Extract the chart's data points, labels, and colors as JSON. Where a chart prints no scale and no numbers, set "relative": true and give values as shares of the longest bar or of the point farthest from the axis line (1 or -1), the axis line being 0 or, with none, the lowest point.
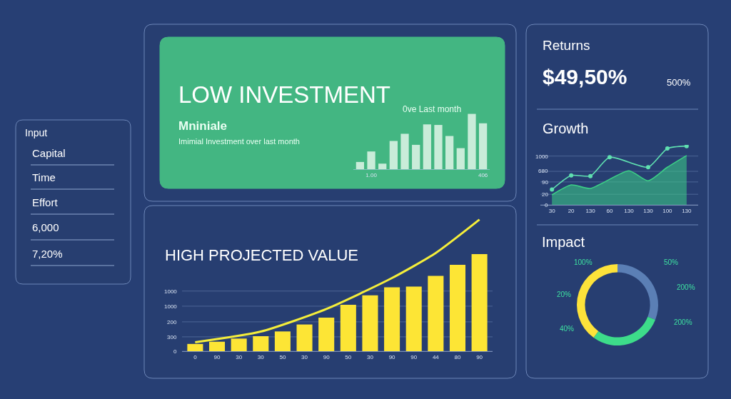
{
  "chart_data": [
    {
      "type": "other",
      "title": "Input",
      "annotations": [
        "Capital",
        "Time",
        "Effort",
        "6,000",
        "7,20%"
      ]
    },
    {
      "type": "bar",
      "title": "LOW INVESTMENT",
      "annotations": [
        "Mniniale",
        "Imimial Investment over last month",
        "0ve Last month"
      ],
      "relative": true,
      "tick_labels": "x",
      "categories": [
        null,
        "1.00",
        null,
        null,
        null,
        null,
        null,
        null,
        null,
        null,
        null,
        "406"
      ],
      "values": [
        0.13,
        0.32,
        0.1,
        0.51,
        0.64,
        0.44,
        0.81,
        0.8,
        0.6,
        0.38,
        1,
        0.83
      ],
      "color": "#c9ecd9"
    },
    {
      "type": "other",
      "title": "Returns",
      "annotations": [
        "$49,50%",
        "500%"
      ]
    },
    {
      "type": "line",
      "title": "Growth",
      "relative": true,
      "tick_labels": "x",
      "annotations": [
        "1000",
        "680",
        "90",
        "20",
        "0"
      ],
      "ref_lines": [
        {
          "axis": "y",
          "value": 0.83
        },
        {
          "axis": "y",
          "value": 0.57
        },
        {
          "axis": "y",
          "value": 0.39
        },
        {
          "axis": "y",
          "value": 0.18
        },
        {
          "axis": "y",
          "value": 0
        }
      ],
      "categories": [
        "30",
        "20",
        "130",
        "60",
        "130",
        "130",
        "100",
        "130"
      ],
      "series": [
        {
          "type": "area",
          "color": "#3ccf86",
          "values": [
            0.17,
            0.34,
            0.28,
            null,
            0.58,
            0.41,
            0.64,
            0.84
          ]
        },
        {
          "type": "line",
          "color": "#5fe0b0",
          "marker": "circle",
          "values": [
            0.26,
            0.5,
            0.49,
            0.81,
            null,
            0.64,
            0.96,
            1.0
          ]
        }
      ]
    },
    {
      "type": "bar",
      "title": "HIGH PROJECTED VALUE",
      "relative": true,
      "tick_labels": "x",
      "annotations": [
        "1000",
        "1000",
        "200",
        "300",
        "0"
      ],
      "ref_lines": [
        {
          "axis": "y",
          "value": 0.457
        },
        {
          "axis": "y",
          "value": 0.342
        },
        {
          "axis": "y",
          "value": 0.223
        },
        {
          "axis": "y",
          "value": 0.109
        },
        {
          "axis": "y",
          "value": 0
        }
      ],
      "categories": [
        "0",
        "90",
        "30",
        "30",
        "50",
        "30",
        "90",
        "50",
        "30",
        "90",
        "90",
        "44",
        "80",
        "90"
      ],
      "series": [
        {
          "color": "#fde535",
          "values": [
            0.055,
            0.072,
            0.096,
            0.114,
            0.15,
            0.203,
            0.255,
            0.352,
            0.425,
            0.486,
            0.491,
            0.572,
            0.656,
            0.738
          ]
        },
        {
          "type": "line",
          "color": "#f5ee3a",
          "values": [
            0.068,
            null,
            null,
            0.149,
            null,
            null,
            0.321,
            null,
            null,
            0.556,
            null,
            0.746,
            null,
            1.0
          ]
        }
      ]
    },
    {
      "type": "donut",
      "title": "Impact",
      "categories": [
        null,
        null,
        null
      ],
      "values": [
        31,
        29,
        40
      ],
      "colors": [
        "#5b7fb5",
        "#3ddc8a",
        "#fde23a"
      ],
      "annotations": [
        "100%",
        "50%",
        "200%",
        "200%",
        "20%",
        "40%"
      ]
    }
  ]
}
